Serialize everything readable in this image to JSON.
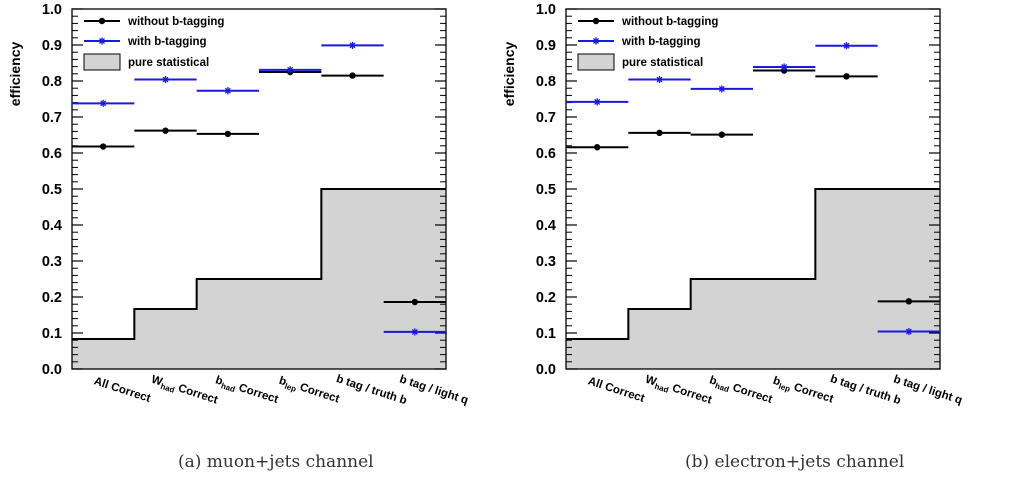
{
  "chart_data": [
    {
      "type": "step",
      "caption": "(a) muon+jets channel",
      "ylabel": "efficiency",
      "ylim": [
        0.0,
        1.0
      ],
      "yticks": [
        "0.0",
        "0.1",
        "0.2",
        "0.3",
        "0.4",
        "0.5",
        "0.6",
        "0.7",
        "0.8",
        "0.9",
        "1.0"
      ],
      "categories": [
        {
          "main": "All Correct",
          "sub": "",
          "post": ""
        },
        {
          "main": "W",
          "sub": "had",
          "post": " Correct"
        },
        {
          "main": "b",
          "sub": "had",
          "post": " Correct"
        },
        {
          "main": "b",
          "sub": "lep",
          "post": " Correct"
        },
        {
          "main": "b tag / truth b",
          "sub": "",
          "post": ""
        },
        {
          "main": "b tag / light q",
          "sub": "",
          "post": ""
        }
      ],
      "legend": [
        "without b-tagging",
        "with b-tagging",
        "pure statistical"
      ],
      "series": [
        {
          "name": "without b-tagging",
          "color": "#000000",
          "marker": "dot",
          "values": [
            0.618,
            0.662,
            0.653,
            0.825,
            0.815,
            0.186
          ]
        },
        {
          "name": "with b-tagging",
          "color": "#1a1adc",
          "marker": "star",
          "values": [
            0.738,
            0.804,
            0.773,
            0.831,
            0.899,
            0.103
          ]
        },
        {
          "name": "pure statistical",
          "color": "#d3d3d3",
          "marker": "fill",
          "values": [
            0.0833,
            0.1667,
            0.25,
            0.25,
            0.5,
            0.5
          ]
        }
      ]
    },
    {
      "type": "step",
      "caption": "(b) electron+jets channel",
      "ylabel": "efficiency",
      "ylim": [
        0.0,
        1.0
      ],
      "yticks": [
        "0.0",
        "0.1",
        "0.2",
        "0.3",
        "0.4",
        "0.5",
        "0.6",
        "0.7",
        "0.8",
        "0.9",
        "1.0"
      ],
      "categories": [
        {
          "main": "All Correct",
          "sub": "",
          "post": ""
        },
        {
          "main": "W",
          "sub": "had",
          "post": " Correct"
        },
        {
          "main": "b",
          "sub": "had",
          "post": " Correct"
        },
        {
          "main": "b",
          "sub": "lep",
          "post": " Correct"
        },
        {
          "main": "b tag / truth b",
          "sub": "",
          "post": ""
        },
        {
          "main": "b tag / light q",
          "sub": "",
          "post": ""
        }
      ],
      "legend": [
        "without b-tagging",
        "with b-tagging",
        "pure statistical"
      ],
      "series": [
        {
          "name": "without b-tagging",
          "color": "#000000",
          "marker": "dot",
          "values": [
            0.616,
            0.656,
            0.651,
            0.829,
            0.813,
            0.188
          ]
        },
        {
          "name": "with b-tagging",
          "color": "#1a1adc",
          "marker": "star",
          "values": [
            0.742,
            0.804,
            0.778,
            0.839,
            0.898,
            0.104
          ]
        },
        {
          "name": "pure statistical",
          "color": "#d3d3d3",
          "marker": "fill",
          "values": [
            0.0833,
            0.1667,
            0.25,
            0.25,
            0.5,
            0.5
          ]
        }
      ]
    }
  ]
}
